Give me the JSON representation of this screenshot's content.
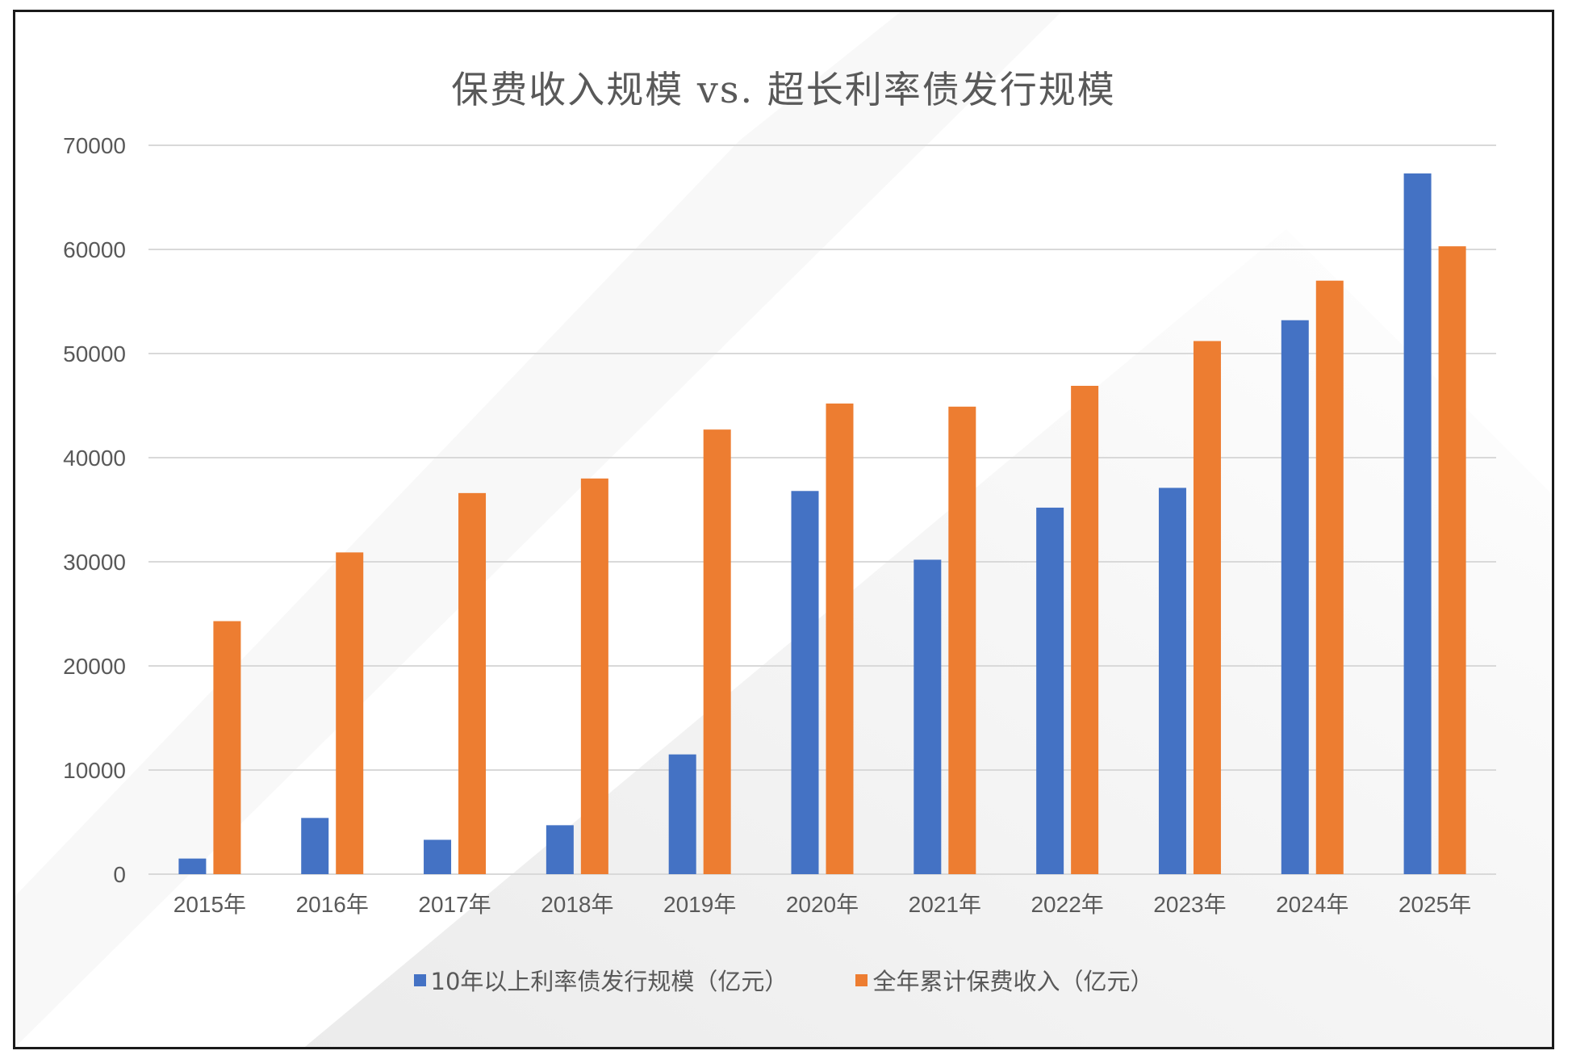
{
  "chart_data": {
    "type": "bar",
    "title": "保费收入规模 vs. 超长利率债发行规模",
    "xlabel": "",
    "ylabel": "",
    "categories": [
      "2015年",
      "2016年",
      "2017年",
      "2018年",
      "2019年",
      "2020年",
      "2021年",
      "2022年",
      "2023年",
      "2024年",
      "2025年"
    ],
    "series": [
      {
        "name": "10年以上利率债发行规模（亿元）",
        "color": "#4472c4",
        "values": [
          1500,
          5400,
          3300,
          4700,
          11500,
          36800,
          30200,
          35200,
          37100,
          53200,
          67300
        ]
      },
      {
        "name": "全年累计保费收入（亿元）",
        "color": "#ed7d31",
        "values": [
          24300,
          30900,
          36600,
          38000,
          42700,
          45200,
          44900,
          46900,
          51200,
          57000,
          60300
        ]
      }
    ],
    "ylim": [
      0,
      70000
    ],
    "yticks": [
      0,
      10000,
      20000,
      30000,
      40000,
      50000,
      60000,
      70000
    ],
    "grid": true,
    "legend_position": "bottom"
  }
}
